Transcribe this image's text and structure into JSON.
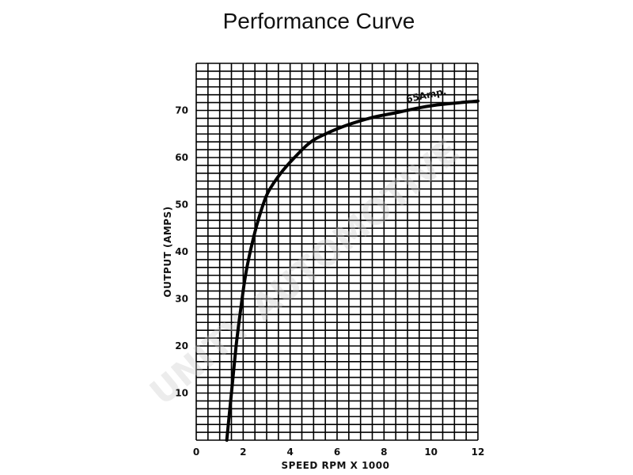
{
  "chart_data": {
    "type": "line",
    "title": "Performance Curve",
    "xlabel": "SPEED RPM X 1000",
    "ylabel": "OUTPUT (AMPS)",
    "xlim": [
      0,
      12
    ],
    "ylim": [
      0,
      80
    ],
    "x_ticks": [
      0,
      2,
      4,
      6,
      8,
      10,
      12
    ],
    "y_ticks": [
      10,
      20,
      30,
      40,
      50,
      60,
      70
    ],
    "grid": true,
    "series": [
      {
        "name": "",
        "x": [
          1.3,
          1.5,
          1.7,
          1.9,
          2.1,
          2.3,
          2.6,
          3.0,
          3.5,
          4.0,
          4.8,
          5.5,
          6.5,
          7.5,
          8.5,
          10.0,
          12.0
        ],
        "y": [
          0,
          10,
          20,
          28,
          35,
          40,
          46,
          52,
          56,
          59,
          63,
          65,
          67,
          68.5,
          69.5,
          71,
          72
        ]
      }
    ],
    "annotations": [
      {
        "text": "65Amp.",
        "x": 9.0,
        "y": 71
      }
    ]
  },
  "watermark": "UNITY AUTOMOTIVE"
}
